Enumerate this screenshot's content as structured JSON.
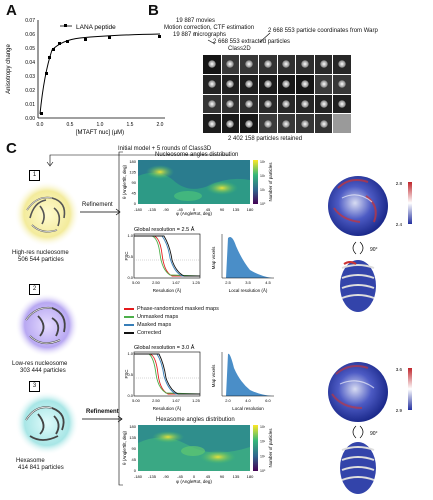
{
  "panels": {
    "a": "A",
    "b": "B",
    "c": "C"
  },
  "panel_a": {
    "legend": "LANA peptide",
    "ylabel": "Anisotropy change",
    "xlabel": "[MTAFT nuc] (µM)",
    "yticks": [
      "0.00",
      "0.01",
      "0.02",
      "0.03",
      "0.04",
      "0.05",
      "0.06",
      "0.07"
    ],
    "xticks": [
      "0.0",
      "0.5",
      "1.0",
      "1.5",
      "2.0"
    ]
  },
  "panel_b": {
    "movies": "19 887 movies",
    "motion": "Motion correction, CTF estimation",
    "micrographs": "19 887 micrographs",
    "extracted": "2 668 553 extracted particles",
    "class2d": "Class2D",
    "warp": "2 668 553 particle coordinates from Warp",
    "retained": "2 402 158 particles retained"
  },
  "panel_c": {
    "initial_model": "Initial model + 5 rounds of Class3D",
    "refinement_1": "Refinement",
    "refinement_3": "Refinement",
    "box1": "1",
    "box2": "2",
    "box3": "3",
    "class1_name": "High-res nucleosome",
    "class1_count": "506 544 particles",
    "class2_name": "Low-res nucleosome",
    "class2_count": "303 444 particles",
    "class3_name": "Hexasome",
    "class3_count": "414 841 particles",
    "heat1_title": "Nucleosome angles distribution",
    "heat2_title": "Hexasome angles distribution",
    "heat_ylabel": "θ (AngleTilt, deg)",
    "heat_xlabel": "φ (AngleRot, deg)",
    "heat_cbar_label": "Number of particles",
    "heat_xticks": [
      "-180",
      "-135",
      "-90",
      "-45",
      "0",
      "45",
      "90",
      "135",
      "180"
    ],
    "heat_yticks": [
      "0",
      "45",
      "90",
      "135",
      "180"
    ],
    "heat_cbar_ticks": [
      "10⁰",
      "10¹",
      "10²",
      "10³"
    ],
    "fsc1_title": "Global resolution = 2.5 Å",
    "fsc2_title": "Global resolution = 3.0 Å",
    "fsc_ylabel": "FSC",
    "fsc_xlabel": "Resolution (Å)",
    "fsc1_xticks": [
      "5.00",
      "2.50",
      "1.67",
      "1.25"
    ],
    "fsc2_xticks": [
      "5.00",
      "2.50",
      "1.67",
      "1.25"
    ],
    "fsc_yticks": [
      "0.0",
      "0.5",
      "1.0"
    ],
    "hist1_xlabel": "Local resolution (Å)",
    "hist2_xlabel": "Local resolution",
    "hist_ylabel": "Map voxels",
    "hist1_xticks": [
      "2.5",
      "3.5",
      "4.5"
    ],
    "hist2_xticks": [
      "2.0",
      "4.0",
      "6.0"
    ],
    "legend_items": [
      "Phase-randomized masked maps",
      "Unmasked maps",
      "Masked maps",
      "Corrected"
    ],
    "legend_colors": [
      "#e41a1c",
      "#4daf4a",
      "#377eb8",
      "#111111"
    ],
    "map1_scale": [
      "2.8",
      "2.4"
    ],
    "map2_scale": [
      "3.6",
      "2.9"
    ],
    "rot_label": "90°"
  }
}
